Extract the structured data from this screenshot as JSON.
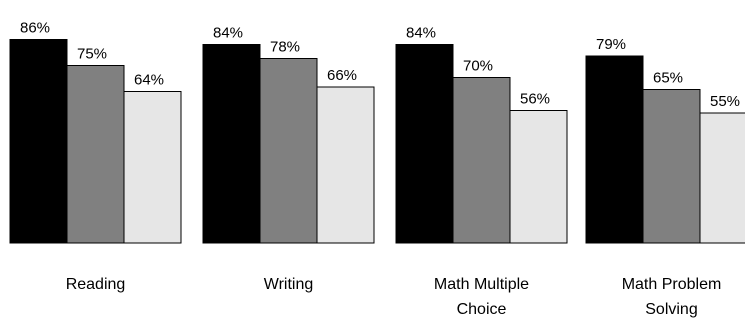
{
  "chart_data": {
    "type": "bar",
    "categories": [
      [
        "Reading"
      ],
      [
        "Writing"
      ],
      [
        "Math Multiple",
        "Choice"
      ],
      [
        "Math Problem",
        "Solving"
      ]
    ],
    "series": [
      {
        "color": "#000000",
        "values": [
          86,
          84,
          84,
          79
        ],
        "labels": [
          "86%",
          "84%",
          "84%",
          "79%"
        ]
      },
      {
        "color": "#808080",
        "values": [
          75,
          78,
          70,
          65
        ],
        "labels": [
          "75%",
          "78%",
          "70%",
          "65%"
        ]
      },
      {
        "color": "#e6e6e6",
        "values": [
          64,
          66,
          56,
          55
        ],
        "labels": [
          "64%",
          "66%",
          "56%",
          "55%"
        ]
      }
    ],
    "title": "",
    "xlabel": "",
    "ylabel": "",
    "grid": false,
    "legend": "none"
  }
}
